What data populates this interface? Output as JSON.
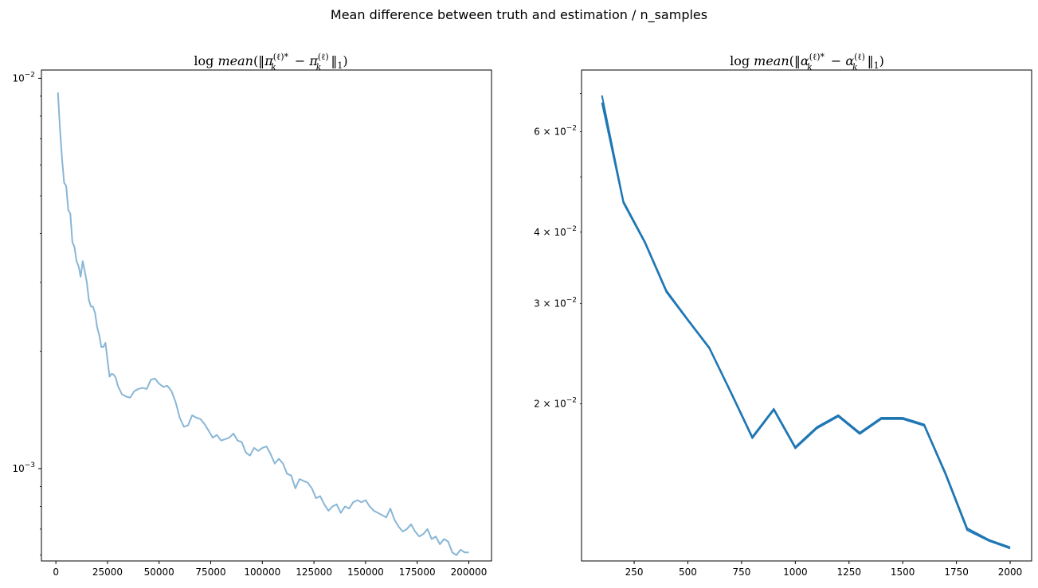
{
  "figure": {
    "suptitle": "Mean difference between truth and estimation / n_samples"
  },
  "chart_data": [
    {
      "type": "line",
      "title": "log mean(‖π_k^(ℓ)* − π_k^(ℓ)‖_1)",
      "title_parts": {
        "prefix": "log",
        "fn": "mean",
        "sym": "π"
      },
      "xlabel": "",
      "ylabel": "",
      "yscale": "log",
      "xlim": [
        -7000,
        211000
      ],
      "ylim": [
        0.00058,
        0.0105
      ],
      "grid": false,
      "color": "#89b6d6",
      "xticks": [
        0,
        25000,
        50000,
        75000,
        100000,
        125000,
        150000,
        175000,
        200000
      ],
      "xtick_labels": [
        "0",
        "25000",
        "50000",
        "75000",
        "100000",
        "125000",
        "150000",
        "175000",
        "200000"
      ],
      "yticks_major": [
        0.001,
        0.01
      ],
      "ytick_major_labels": [
        {
          "base": "10",
          "exp": "−3"
        },
        {
          "base": "10",
          "exp": "−2"
        }
      ],
      "x": [
        1000,
        2000,
        3000,
        4000,
        5000,
        6000,
        7000,
        8000,
        9000,
        10000,
        11000,
        12000,
        13000,
        14000,
        15000,
        16000,
        17000,
        18000,
        19000,
        20000,
        21000,
        22000,
        23000,
        24000,
        25000,
        26000,
        27000,
        28000,
        29000,
        30000,
        32000,
        34000,
        36000,
        38000,
        40000,
        42000,
        44000,
        46000,
        48000,
        50000,
        52000,
        54000,
        56000,
        58000,
        60000,
        62000,
        64000,
        66000,
        68000,
        70000,
        72000,
        74000,
        76000,
        78000,
        80000,
        82000,
        84000,
        86000,
        88000,
        90000,
        92000,
        94000,
        96000,
        98000,
        100000,
        102000,
        104000,
        106000,
        108000,
        110000,
        112000,
        114000,
        116000,
        118000,
        120000,
        122000,
        124000,
        126000,
        128000,
        130000,
        132000,
        134000,
        136000,
        138000,
        140000,
        142000,
        144000,
        146000,
        148000,
        150000,
        152000,
        154000,
        156000,
        158000,
        160000,
        162000,
        164000,
        166000,
        168000,
        170000,
        172000,
        174000,
        176000,
        178000,
        180000,
        182000,
        184000,
        186000,
        188000,
        190000,
        192000,
        194000,
        196000,
        198000,
        200000
      ],
      "values": [
        0.0092,
        0.0074,
        0.0062,
        0.0054,
        0.0053,
        0.0046,
        0.0045,
        0.0038,
        0.0037,
        0.0034,
        0.0033,
        0.0031,
        0.0034,
        0.0032,
        0.003,
        0.0027,
        0.0026,
        0.0026,
        0.0025,
        0.0023,
        0.0022,
        0.00205,
        0.00205,
        0.0021,
        0.0019,
        0.00172,
        0.00175,
        0.00174,
        0.00171,
        0.00163,
        0.00155,
        0.00153,
        0.00152,
        0.00158,
        0.0016,
        0.00161,
        0.0016,
        0.00169,
        0.0017,
        0.00165,
        0.00162,
        0.00163,
        0.00158,
        0.00148,
        0.00135,
        0.00128,
        0.00129,
        0.00137,
        0.00135,
        0.00134,
        0.0013,
        0.00125,
        0.0012,
        0.00122,
        0.00118,
        0.00119,
        0.0012,
        0.00123,
        0.00118,
        0.00117,
        0.0011,
        0.00108,
        0.00113,
        0.00111,
        0.00113,
        0.00114,
        0.00109,
        0.00103,
        0.00106,
        0.00103,
        0.00097,
        0.00096,
        0.00089,
        0.00094,
        0.00093,
        0.00092,
        0.00089,
        0.00084,
        0.00085,
        0.00081,
        0.00078,
        0.0008,
        0.00081,
        0.00077,
        0.0008,
        0.00079,
        0.00082,
        0.00083,
        0.00082,
        0.00083,
        0.0008,
        0.00078,
        0.00077,
        0.00076,
        0.00075,
        0.00079,
        0.00074,
        0.00071,
        0.00069,
        0.0007,
        0.00072,
        0.00069,
        0.00067,
        0.00068,
        0.0007,
        0.00066,
        0.00067,
        0.00064,
        0.00066,
        0.00065,
        0.00061,
        0.0006,
        0.00062,
        0.00061,
        0.00061
      ]
    },
    {
      "type": "line",
      "title": "log mean(‖α_k^(ℓ)* − α_k^(ℓ)‖_1)",
      "title_parts": {
        "prefix": "log",
        "fn": "mean",
        "sym": "α"
      },
      "xlabel": "",
      "ylabel": "",
      "yscale": "log",
      "xlim": [
        5,
        2100
      ],
      "ylim": [
        0.0106,
        0.077
      ],
      "grid": false,
      "color": "#1f77b4",
      "xticks": [
        250,
        500,
        750,
        1000,
        1250,
        1500,
        1750,
        2000
      ],
      "xtick_labels": [
        "250",
        "500",
        "750",
        "1000",
        "1250",
        "1500",
        "1750",
        "2000"
      ],
      "yticks_major": [],
      "yticks_minor": [
        0.02,
        0.03,
        0.04,
        0.06
      ],
      "ytick_minor_labels": [
        {
          "mant": "2",
          "base": "10",
          "exp": "−2"
        },
        {
          "mant": "3",
          "base": "10",
          "exp": "−2"
        },
        {
          "mant": "4",
          "base": "10",
          "exp": "−2"
        },
        {
          "mant": "6",
          "base": "10",
          "exp": "−2"
        }
      ],
      "yticks_minor_unlabeled": [
        0.05,
        0.07
      ],
      "x": [
        100,
        200,
        300,
        400,
        500,
        600,
        700,
        800,
        900,
        1000,
        1100,
        1200,
        1300,
        1400,
        1500,
        1600,
        1700,
        1800,
        1900,
        2000
      ],
      "series": [
        {
          "values": [
            0.0695,
            0.0453,
            0.0385,
            0.0316,
            0.0281,
            0.0251,
            0.021,
            0.0175,
            0.0196,
            0.0168,
            0.0182,
            0.0191,
            0.0178,
            0.0189,
            0.0189,
            0.0184,
            0.0151,
            0.0121,
            0.01155,
            0.0112
          ]
        },
        {
          "values": [
            0.0675,
            0.045,
            0.0383,
            0.0314,
            0.028,
            0.025,
            0.0209,
            0.0174,
            0.0195,
            0.0167,
            0.0181,
            0.019,
            0.0177,
            0.0188,
            0.0188,
            0.0183,
            0.015,
            0.012,
            0.0115,
            0.01115
          ]
        }
      ]
    }
  ]
}
